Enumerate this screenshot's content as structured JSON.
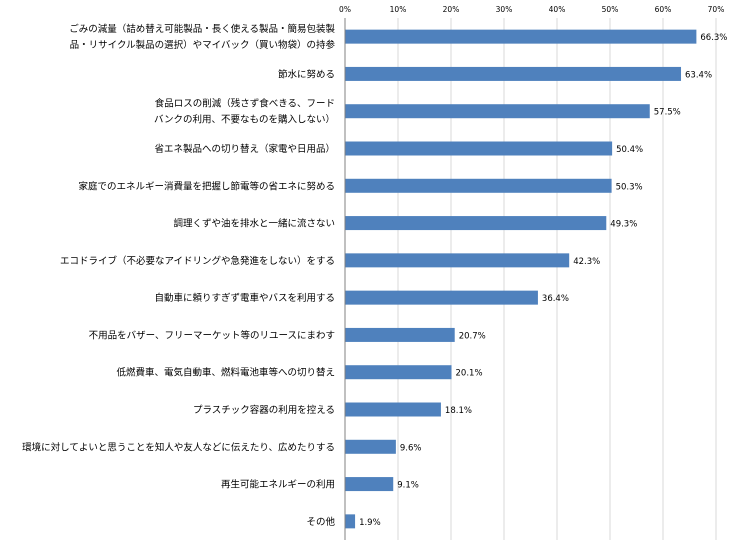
{
  "chart_data": {
    "type": "bar",
    "orientation": "horizontal",
    "xlim": [
      0,
      70
    ],
    "x_ticks": [
      "0%",
      "10%",
      "20%",
      "30%",
      "40%",
      "50%",
      "60%",
      "70%"
    ],
    "x_tick_values": [
      0,
      10,
      20,
      30,
      40,
      50,
      60,
      70
    ],
    "value_suffix": "%",
    "grid": true,
    "bar_color": "#4f81bd",
    "categories": [
      [
        "ごみの減量（詰め替え可能製品・長く使える製品・簡易包装製",
        "品・リサイクル製品の選択）やマイバック（買い物袋）の持参"
      ],
      [
        "節水に努める"
      ],
      [
        "食品ロスの削減（残さず食べきる、フード",
        "バンクの利用、不要なものを購入しない）"
      ],
      [
        "省エネ製品への切り替え（家電や日用品）"
      ],
      [
        "家庭でのエネルギー消費量を把握し節電等の省エネに努める"
      ],
      [
        "調理くずや油を排水と一緒に流さない"
      ],
      [
        "エコドライブ（不必要なアイドリングや急発進をしない）をする"
      ],
      [
        "自動車に頼りすぎず電車やバスを利用する"
      ],
      [
        "不用品をバザー、フリーマーケット等のリユースにまわす"
      ],
      [
        "低燃費車、電気自動車、燃料電池車等への切り替え"
      ],
      [
        "プラスチック容器の利用を控える"
      ],
      [
        "環境に対してよいと思うことを知人や友人などに伝えたり、広めたりする"
      ],
      [
        "再生可能エネルギーの利用"
      ],
      [
        "その他"
      ]
    ],
    "values": [
      66.3,
      63.4,
      57.5,
      50.4,
      50.3,
      49.3,
      42.3,
      36.4,
      20.7,
      20.1,
      18.1,
      9.6,
      9.1,
      1.9
    ],
    "value_labels": [
      "66.3%",
      "63.4%",
      "57.5%",
      "50.4%",
      "50.3%",
      "49.3%",
      "42.3%",
      "36.4%",
      "20.7%",
      "20.1%",
      "18.1%",
      "9.6%",
      "9.1%",
      "1.9%"
    ]
  }
}
